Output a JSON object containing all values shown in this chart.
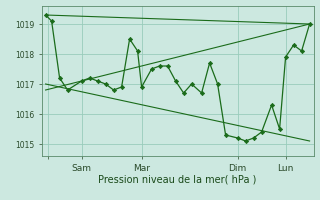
{
  "title": "",
  "xlabel": "Pression niveau de la mer( hPa )",
  "ylabel": "",
  "background_color": "#cce8e0",
  "grid_color": "#99ccbb",
  "line_color": "#1a6b1a",
  "marker_color": "#1a6b1a",
  "ylim": [
    1014.6,
    1019.6
  ],
  "yticks": [
    1015,
    1016,
    1017,
    1018,
    1019
  ],
  "xlim": [
    -2,
    134
  ],
  "x_tick_positions": [
    1,
    18,
    48,
    96,
    120
  ],
  "x_tick_labels": [
    "",
    "Sam",
    "Mar",
    "Dim",
    "Lun"
  ],
  "series1_x": [
    0,
    3,
    7,
    11,
    18,
    22,
    26,
    30,
    34,
    38,
    42,
    46,
    48,
    53,
    57,
    61,
    65,
    69,
    73,
    78,
    82,
    86,
    90,
    96,
    100,
    104,
    108,
    113,
    117,
    120,
    124,
    128,
    132
  ],
  "series1_y": [
    1019.3,
    1019.1,
    1017.2,
    1016.8,
    1017.1,
    1017.2,
    1017.1,
    1017.0,
    1016.8,
    1016.9,
    1018.5,
    1018.1,
    1016.9,
    1017.5,
    1017.6,
    1017.6,
    1017.1,
    1016.7,
    1017.0,
    1016.7,
    1017.7,
    1017.0,
    1015.3,
    1015.2,
    1015.1,
    1015.2,
    1015.4,
    1016.3,
    1015.5,
    1017.9,
    1018.3,
    1018.1,
    1019.0
  ],
  "trend1_x": [
    0,
    132
  ],
  "trend1_y": [
    1019.3,
    1019.0
  ],
  "trend2_x": [
    0,
    132
  ],
  "trend2_y": [
    1017.0,
    1015.1
  ],
  "trend3_x": [
    0,
    132
  ],
  "trend3_y": [
    1016.8,
    1019.0
  ]
}
